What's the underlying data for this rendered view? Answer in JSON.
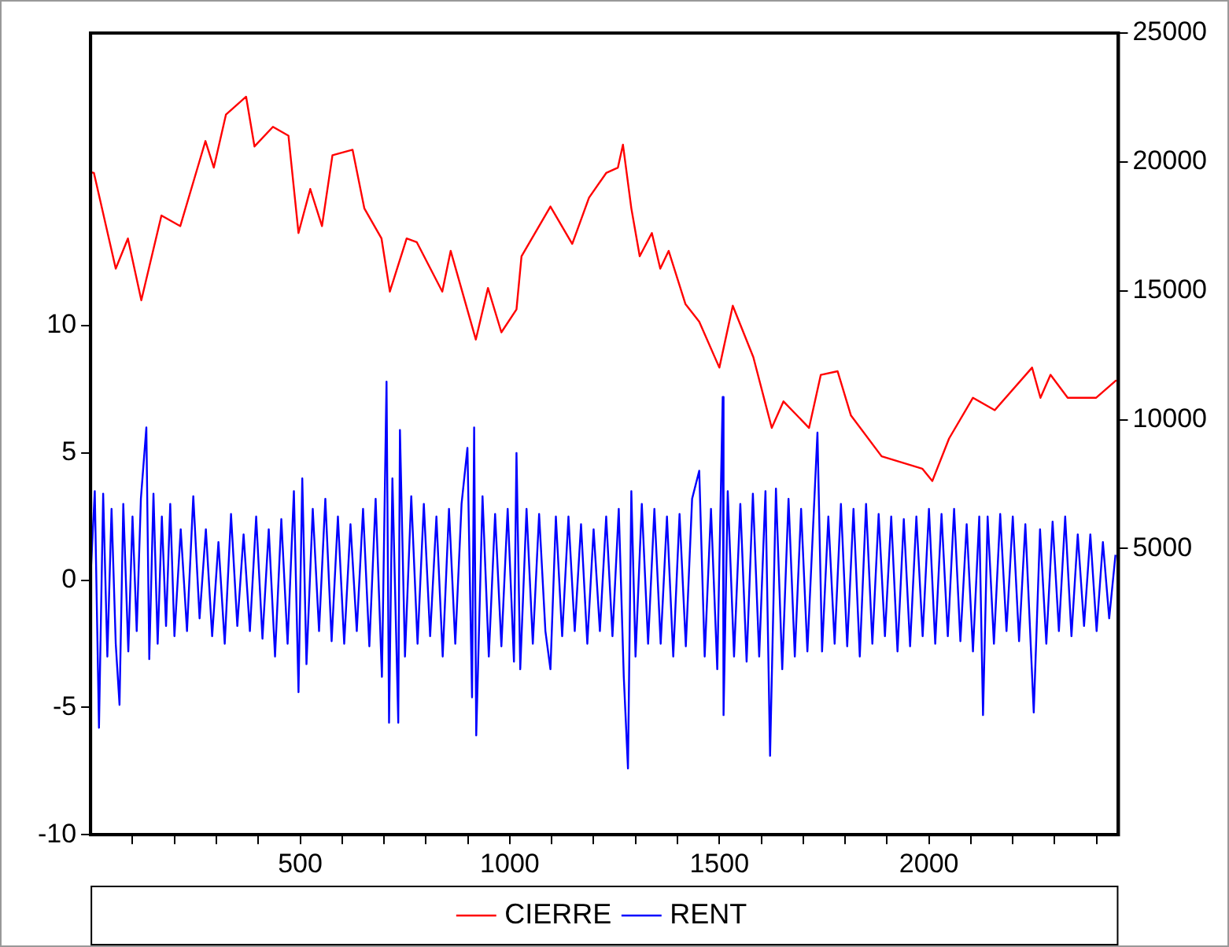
{
  "chart_data": {
    "type": "line",
    "xlim": [
      0,
      2452
    ],
    "xticks": [
      {
        "value": 100,
        "label": null
      },
      {
        "value": 200,
        "label": null
      },
      {
        "value": 300,
        "label": null
      },
      {
        "value": 400,
        "label": null
      },
      500,
      {
        "value": 600,
        "label": null
      },
      {
        "value": 700,
        "label": null
      },
      {
        "value": 800,
        "label": null
      },
      {
        "value": 900,
        "label": null
      },
      1000,
      {
        "value": 1100,
        "label": null
      },
      {
        "value": 1200,
        "label": null
      },
      {
        "value": 1300,
        "label": null
      },
      {
        "value": 1400,
        "label": null
      },
      1500,
      {
        "value": 1600,
        "label": null
      },
      {
        "value": 1700,
        "label": null
      },
      {
        "value": 1800,
        "label": null
      },
      {
        "value": 1900,
        "label": null
      },
      2000,
      {
        "value": 2100,
        "label": null
      },
      {
        "value": 2200,
        "label": null
      },
      {
        "value": 2300,
        "label": null
      },
      {
        "value": 2400,
        "label": null
      }
    ],
    "ylim": [
      -10,
      21.5
    ],
    "yticks": [
      -10,
      -5,
      0,
      5,
      10
    ],
    "y2lim": [
      -6100,
      25000
    ],
    "y2ticks": [
      5000,
      10000,
      15000,
      20000,
      25000
    ],
    "grid": false,
    "legend": "bottom",
    "marker": "none",
    "line_style": "solid",
    "series": [
      {
        "name": "RENT",
        "color": "#0000ff",
        "x": [
          1,
          10,
          20,
          30,
          40,
          50,
          60,
          69,
          78,
          90,
          100,
          110,
          120,
          133,
          140,
          150,
          160,
          170,
          180,
          190,
          200,
          215,
          230,
          245,
          260,
          275,
          290,
          305,
          320,
          335,
          350,
          365,
          380,
          395,
          410,
          425,
          440,
          455,
          470,
          485,
          496,
          505,
          515,
          530,
          545,
          560,
          575,
          590,
          605,
          620,
          635,
          650,
          665,
          680,
          695,
          706,
          712,
          720,
          734,
          738,
          750,
          765,
          780,
          795,
          810,
          825,
          840,
          855,
          870,
          885,
          899,
          910,
          915,
          920,
          935,
          950,
          965,
          980,
          995,
          1010,
          1016,
          1025,
          1040,
          1055,
          1070,
          1085,
          1097,
          1110,
          1125,
          1140,
          1155,
          1170,
          1185,
          1200,
          1215,
          1230,
          1245,
          1260,
          1272,
          1282,
          1290,
          1300,
          1315,
          1330,
          1345,
          1360,
          1375,
          1390,
          1405,
          1420,
          1435,
          1452,
          1465,
          1480,
          1495,
          1508,
          1510,
          1520,
          1535,
          1550,
          1565,
          1580,
          1595,
          1610,
          1621,
          1635,
          1650,
          1665,
          1680,
          1695,
          1710,
          1725,
          1734,
          1745,
          1760,
          1775,
          1790,
          1805,
          1820,
          1835,
          1850,
          1865,
          1880,
          1895,
          1910,
          1925,
          1940,
          1955,
          1970,
          1985,
          2000,
          2015,
          2030,
          2045,
          2060,
          2075,
          2090,
          2105,
          2120,
          2129,
          2140,
          2155,
          2170,
          2185,
          2200,
          2215,
          2230,
          2250,
          2265,
          2280,
          2295,
          2310,
          2325,
          2340,
          2355,
          2370,
          2385,
          2400,
          2415,
          2430,
          2445
        ],
        "values": [
          0.5,
          3.5,
          -5.8,
          3.4,
          -3.0,
          2.8,
          -2.5,
          -4.9,
          3.0,
          -2.8,
          2.5,
          -2.0,
          3.2,
          6.0,
          -3.1,
          3.4,
          -2.5,
          2.5,
          -1.8,
          3.0,
          -2.2,
          2.0,
          -2.0,
          3.3,
          -1.5,
          2.0,
          -2.2,
          1.5,
          -2.5,
          2.6,
          -1.8,
          1.8,
          -2.0,
          2.5,
          -2.3,
          2.0,
          -3.0,
          2.4,
          -2.5,
          3.5,
          -4.4,
          4.0,
          -3.3,
          2.8,
          -2.0,
          3.2,
          -2.4,
          2.5,
          -2.5,
          2.2,
          -2.0,
          2.8,
          -2.6,
          3.2,
          -3.8,
          7.8,
          -5.6,
          4.0,
          -5.6,
          5.9,
          -3.0,
          3.3,
          -2.5,
          3.0,
          -2.2,
          2.5,
          -3.0,
          2.8,
          -2.5,
          3.0,
          5.2,
          -4.6,
          6.0,
          -6.1,
          3.3,
          -3.0,
          2.6,
          -2.6,
          2.8,
          -3.2,
          5.0,
          -3.5,
          2.8,
          -2.5,
          2.6,
          -2.0,
          -3.5,
          2.5,
          -2.2,
          2.5,
          -2.0,
          2.2,
          -2.5,
          2.0,
          -2.0,
          2.5,
          -2.2,
          2.8,
          -3.8,
          -7.4,
          3.5,
          -3.0,
          3.0,
          -2.5,
          2.8,
          -2.5,
          2.5,
          -3.0,
          2.6,
          -2.6,
          3.2,
          4.3,
          -3.0,
          2.8,
          -3.5,
          7.2,
          -5.3,
          3.5,
          -3.0,
          3.0,
          -3.2,
          3.4,
          -3.0,
          3.5,
          -6.9,
          3.6,
          -3.5,
          3.2,
          -3.0,
          2.8,
          -2.8,
          2.6,
          5.8,
          -2.8,
          2.5,
          -2.5,
          3.0,
          -2.6,
          2.8,
          -3.0,
          3.0,
          -2.5,
          2.6,
          -2.2,
          2.5,
          -2.8,
          2.4,
          -2.6,
          2.5,
          -2.2,
          2.8,
          -2.5,
          2.6,
          -2.2,
          2.8,
          -2.4,
          2.2,
          -2.8,
          2.5,
          -5.3,
          2.5,
          -2.5,
          2.6,
          -2.0,
          2.5,
          -2.4,
          2.2,
          -5.2,
          2.0,
          -2.5,
          2.3,
          -2.0,
          2.5,
          -2.2,
          1.8,
          -1.8,
          1.8,
          -2.0,
          1.5,
          -1.5,
          1.0
        ]
      },
      {
        "name": "CIERRE",
        "color": "#ff0000",
        "axis": "y2",
        "x": [
          1,
          8,
          60,
          89,
          121,
          169,
          214,
          274,
          294,
          323,
          371,
          391,
          435,
          472,
          496,
          524,
          552,
          577,
          625,
          653,
          694,
          714,
          754,
          778,
          839,
          859,
          919,
          948,
          980,
          1016,
          1028,
          1097,
          1149,
          1189,
          1230,
          1258,
          1270,
          1290,
          1310,
          1339,
          1359,
          1379,
          1419,
          1452,
          1500,
          1532,
          1581,
          1625,
          1653,
          1714,
          1742,
          1782,
          1814,
          1887,
          1984,
          2008,
          2048,
          2105,
          2157,
          2246,
          2266,
          2290,
          2331,
          2399,
          2447
        ],
        "values": [
          19600,
          19570,
          15860,
          17030,
          14630,
          17920,
          17510,
          20810,
          19780,
          21840,
          22530,
          20600,
          21360,
          21020,
          17240,
          18950,
          17510,
          20260,
          20470,
          18200,
          17030,
          14970,
          17030,
          16890,
          14970,
          16550,
          13110,
          15110,
          13390,
          14280,
          16340,
          18270,
          16820,
          18610,
          19570,
          19780,
          20670,
          18200,
          16340,
          17240,
          15860,
          16550,
          14490,
          13800,
          12020,
          14420,
          12430,
          9680,
          10710,
          9680,
          11740,
          11880,
          10160,
          8580,
          8100,
          7620,
          9270,
          10850,
          10370,
          12020,
          10850,
          11740,
          10850,
          10850,
          11530
        ]
      }
    ]
  }
}
